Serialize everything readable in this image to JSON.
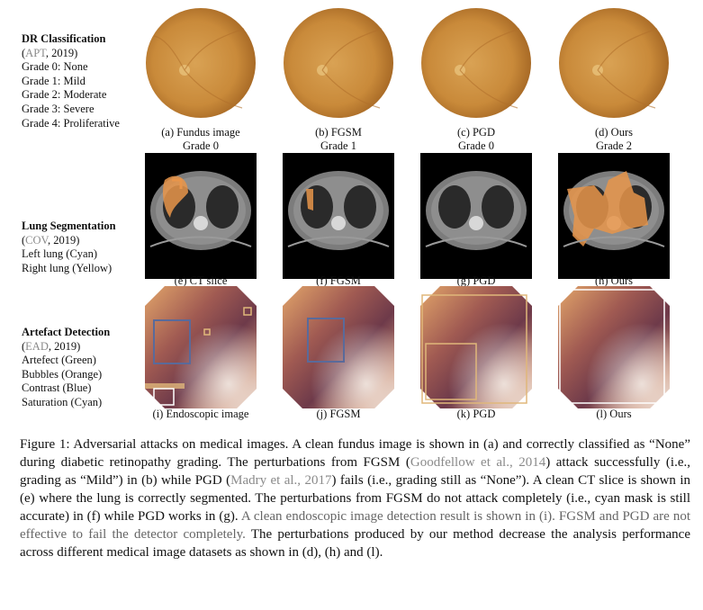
{
  "rows": [
    {
      "heading": "DR Classification",
      "source": {
        "pre": "(",
        "cite": "APT",
        "post": ", 2019)"
      },
      "lines": [
        "Grade 0: None",
        "Grade 1: Mild",
        "Grade 2: Moderate",
        "Grade 3: Severe",
        "Grade 4: Proliferative"
      ]
    },
    {
      "heading": "Lung Segmentation",
      "source": {
        "pre": "(",
        "cite": "COV",
        "post": ", 2019)"
      },
      "lines": [
        "Left lung (Cyan)",
        "Right lung (Yellow)"
      ]
    },
    {
      "heading": "Artefact Detection",
      "source": {
        "pre": "(",
        "cite": "EAD",
        "post": ", 2019)"
      },
      "lines": [
        "Artefect (Green)",
        "Bubbles (Orange)",
        "Contrast (Blue)",
        "Saturation (Cyan)"
      ]
    }
  ],
  "panels": {
    "fundus": [
      {
        "label": "(a) Fundus image",
        "grade": "Grade 0"
      },
      {
        "label": "(b) FGSM",
        "grade": "Grade 1"
      },
      {
        "label": "(c) PGD",
        "grade": "Grade 0"
      },
      {
        "label": "(d) Ours",
        "grade": "Grade 2"
      }
    ],
    "ct": [
      {
        "label": "(e) CT slice"
      },
      {
        "label": "(f) FGSM"
      },
      {
        "label": "(g) PGD"
      },
      {
        "label": "(h) Ours"
      }
    ],
    "endo": [
      {
        "label": "(i) Endoscopic image"
      },
      {
        "label": "(j) FGSM"
      },
      {
        "label": "(k) PGD"
      },
      {
        "label": "(l) Ours"
      }
    ]
  },
  "caption": {
    "p1": "Figure 1: Adversarial attacks on medical images. A clean fundus image is shown in (a) and correctly classified as “None” during diabetic retinopathy grading. The perturbations from FGSM (",
    "c1": "Goodfellow et al., 2014",
    "p2": ") attack successfully (i.e., grading as “Mild”) in (b) while PGD (",
    "c2": "Madry et al., 2017",
    "p3": ") fails (i.e., grading still as “None”). A clean CT slice is shown in (e) where the lung is correctly segmented. The perturbations from FGSM do not attack completely (i.e., cyan mask is still accurate) in (f) while PGD works in (g). ",
    "p4": "A clean endoscopic image detection result is shown in (i). FGSM and PGD are not effective to fail the detector completely.",
    "p5": " The perturbations produced by our method decrease the analysis performance across different medical image datasets as shown in (d), (h) and (l)."
  },
  "colors": {
    "fundus_orange": "#c98a3a",
    "mask_orange": "#e8954a",
    "box_blue": "#5a6a9a",
    "box_tan": "#e0b77a"
  }
}
